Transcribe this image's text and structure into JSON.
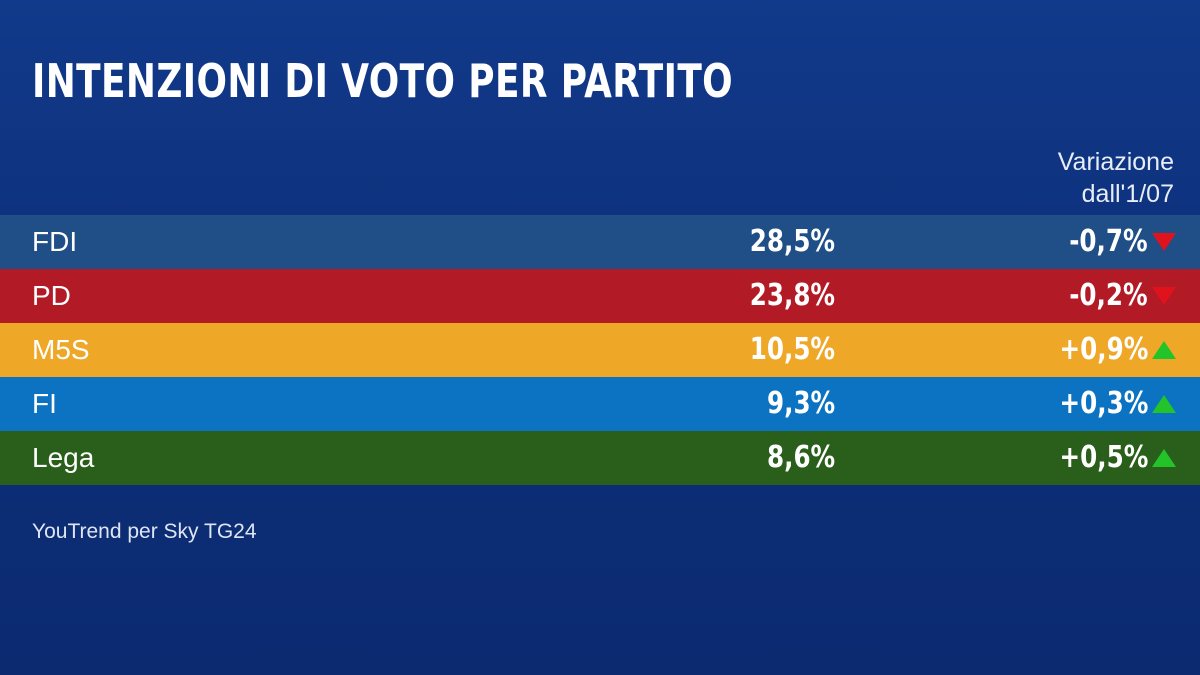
{
  "title": "INTENZIONI DI VOTO PER PARTITO",
  "variation_header": {
    "line1": "Variazione",
    "line2": "dall'1/07"
  },
  "source": "YouTrend per Sky TG24",
  "colors": {
    "background": "#0e2f78",
    "up": "#22c42a",
    "down": "#e0121b"
  },
  "chart_data": {
    "type": "table",
    "title": "INTENZIONI DI VOTO PER PARTITO",
    "columns": [
      "",
      "",
      "Variazione dall'1/07"
    ],
    "rows": [
      {
        "party": "FDI",
        "value": "28,5%",
        "change": "-0,7%",
        "direction": "down",
        "color": "#1f4f86"
      },
      {
        "party": "PD",
        "value": "23,8%",
        "change": "-0,2%",
        "direction": "down",
        "color": "#b21a26"
      },
      {
        "party": "M5S",
        "value": "10,5%",
        "change": "+0,9%",
        "direction": "up",
        "color": "#efa728"
      },
      {
        "party": "FI",
        "value": "9,3%",
        "change": "+0,3%",
        "direction": "up",
        "color": "#0c73c2"
      },
      {
        "party": "Lega",
        "value": "8,6%",
        "change": "+0,5%",
        "direction": "up",
        "color": "#2a5e1b"
      }
    ]
  }
}
